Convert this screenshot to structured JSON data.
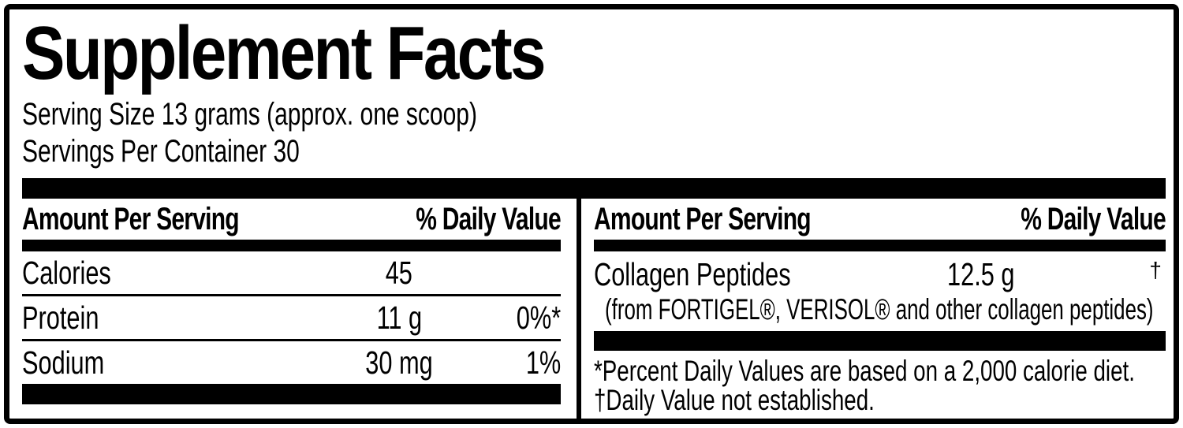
{
  "label": {
    "title": "Supplement Facts",
    "serving_size": "Serving Size 13 grams (approx. one scoop)",
    "servings_per_container": "Servings Per Container 30"
  },
  "left_panel": {
    "header": {
      "amount_label": "Amount Per Serving",
      "dv_label": "% Daily Value"
    },
    "rows": [
      {
        "name": "Calories",
        "amount": "45",
        "daily_value": ""
      },
      {
        "name": "Protein",
        "amount": "11 g",
        "daily_value": "0%*"
      },
      {
        "name": "Sodium",
        "amount": "30 mg",
        "daily_value": "1%"
      }
    ]
  },
  "right_panel": {
    "header": {
      "amount_label": "Amount Per Serving",
      "dv_label": "% Daily Value"
    },
    "ingredient": {
      "name": "Collagen Peptides",
      "amount": "12.5 g",
      "daily_value": "†",
      "source": "(from FORTIGEL®, VERISOL® and other collagen peptides)"
    },
    "footnotes": [
      "*Percent Daily Values are based on a 2,000 calorie diet.",
      "†Daily Value not established."
    ]
  },
  "colors": {
    "ink": "#000000",
    "background": "#ffffff"
  }
}
